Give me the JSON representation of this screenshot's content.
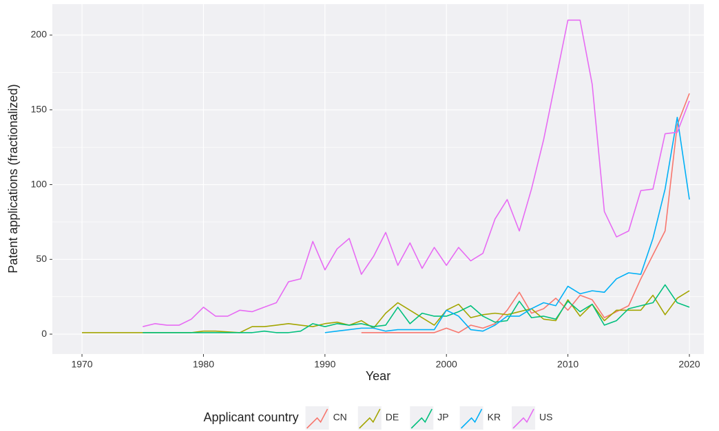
{
  "chart_data": {
    "type": "line",
    "x_label": "Year",
    "y_label": "Patent applications (fractionalized)",
    "legend_title": "Applicant country",
    "legend_position": "bottom",
    "grid": true,
    "x": [
      1970,
      1971,
      1972,
      1973,
      1974,
      1975,
      1976,
      1977,
      1978,
      1979,
      1980,
      1981,
      1982,
      1983,
      1984,
      1985,
      1986,
      1987,
      1988,
      1989,
      1990,
      1991,
      1992,
      1993,
      1994,
      1995,
      1996,
      1997,
      1998,
      1999,
      2000,
      2001,
      2002,
      2003,
      2004,
      2005,
      2006,
      2007,
      2008,
      2009,
      2010,
      2011,
      2012,
      2013,
      2014,
      2015,
      2016,
      2017,
      2018,
      2019,
      2020
    ],
    "xlim": [
      1967.56,
      2021.19
    ],
    "xticks": [
      1970,
      1980,
      1990,
      2000,
      2010,
      2020
    ],
    "ylim": [
      -13.3,
      220.7
    ],
    "yticks": [
      0,
      50,
      100,
      150,
      200
    ],
    "series": [
      {
        "name": "CN",
        "color": "#F8766D",
        "values": [
          null,
          null,
          null,
          null,
          null,
          null,
          null,
          null,
          null,
          null,
          null,
          null,
          null,
          null,
          null,
          null,
          null,
          null,
          null,
          null,
          null,
          null,
          null,
          1,
          1,
          1,
          1,
          1,
          1,
          1,
          4,
          1,
          6,
          4,
          7,
          16,
          28,
          14,
          17,
          24,
          16,
          26,
          23,
          11,
          15,
          19,
          37,
          53,
          69,
          140,
          161
        ]
      },
      {
        "name": "DE",
        "color": "#A3A500",
        "values": [
          1,
          1,
          1,
          1,
          1,
          1,
          1,
          1,
          1,
          1,
          2,
          2,
          1.5,
          1,
          5,
          5,
          6,
          7,
          6,
          5,
          7,
          8,
          6,
          9,
          4,
          14,
          21,
          16,
          11,
          6,
          16,
          20,
          11,
          13,
          14,
          13,
          15,
          17,
          10,
          9,
          23,
          12,
          20,
          9,
          16,
          16,
          16,
          26,
          13,
          24,
          29
        ]
      },
      {
        "name": "JP",
        "color": "#00BF7D",
        "values": [
          null,
          null,
          null,
          null,
          null,
          1,
          1,
          1,
          1,
          1,
          1,
          1,
          1,
          1,
          1,
          2,
          1,
          1,
          2,
          7,
          5,
          7,
          6,
          7,
          5,
          6,
          18,
          7,
          14,
          12,
          12,
          15,
          19,
          12,
          8,
          9,
          22,
          11,
          12,
          10,
          22,
          15,
          20,
          6,
          9,
          17,
          19,
          21,
          33,
          21,
          18
        ]
      },
      {
        "name": "KR",
        "color": "#00B0F6",
        "values": [
          null,
          null,
          null,
          null,
          null,
          null,
          null,
          null,
          null,
          null,
          null,
          null,
          null,
          null,
          null,
          null,
          null,
          null,
          null,
          null,
          1,
          2,
          3,
          4,
          4,
          2,
          3,
          3,
          3,
          3,
          16,
          12,
          3,
          2,
          6,
          12,
          12,
          17,
          21,
          19,
          32,
          27,
          29,
          28,
          37,
          41,
          40,
          64,
          97,
          145,
          90
        ]
      },
      {
        "name": "US",
        "color": "#E76BF3",
        "values": [
          null,
          null,
          null,
          null,
          null,
          5,
          7,
          6,
          6,
          10,
          18,
          12,
          12,
          16,
          15,
          18,
          21,
          35,
          37,
          62,
          43,
          57,
          64,
          40,
          52,
          68,
          46,
          61,
          44,
          58,
          46,
          58,
          49,
          54,
          77,
          90,
          69,
          97,
          130,
          170,
          210,
          210,
          167,
          82,
          65,
          69,
          96,
          97,
          134,
          135,
          156
        ]
      }
    ]
  }
}
